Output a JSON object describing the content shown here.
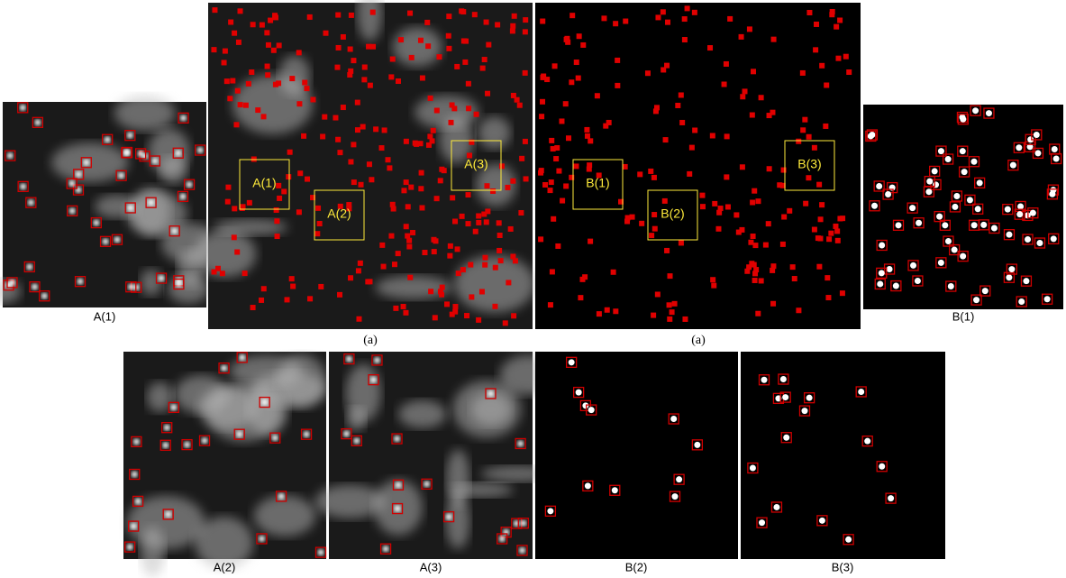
{
  "panels": [
    {
      "caption": "A(1)"
    },
    {
      "caption": "B(1)"
    },
    {
      "caption": "A(2)"
    },
    {
      "caption": "A(3)"
    },
    {
      "caption": "B(2)"
    },
    {
      "caption": "B(3)"
    }
  ],
  "figures": [
    {
      "caption": "(a)",
      "boxes": [
        "A(1)",
        "A(2)",
        "A(3)"
      ]
    },
    {
      "caption": "(a)",
      "boxes": [
        "B(1)",
        "B(2)",
        "B(3)"
      ]
    }
  ]
}
